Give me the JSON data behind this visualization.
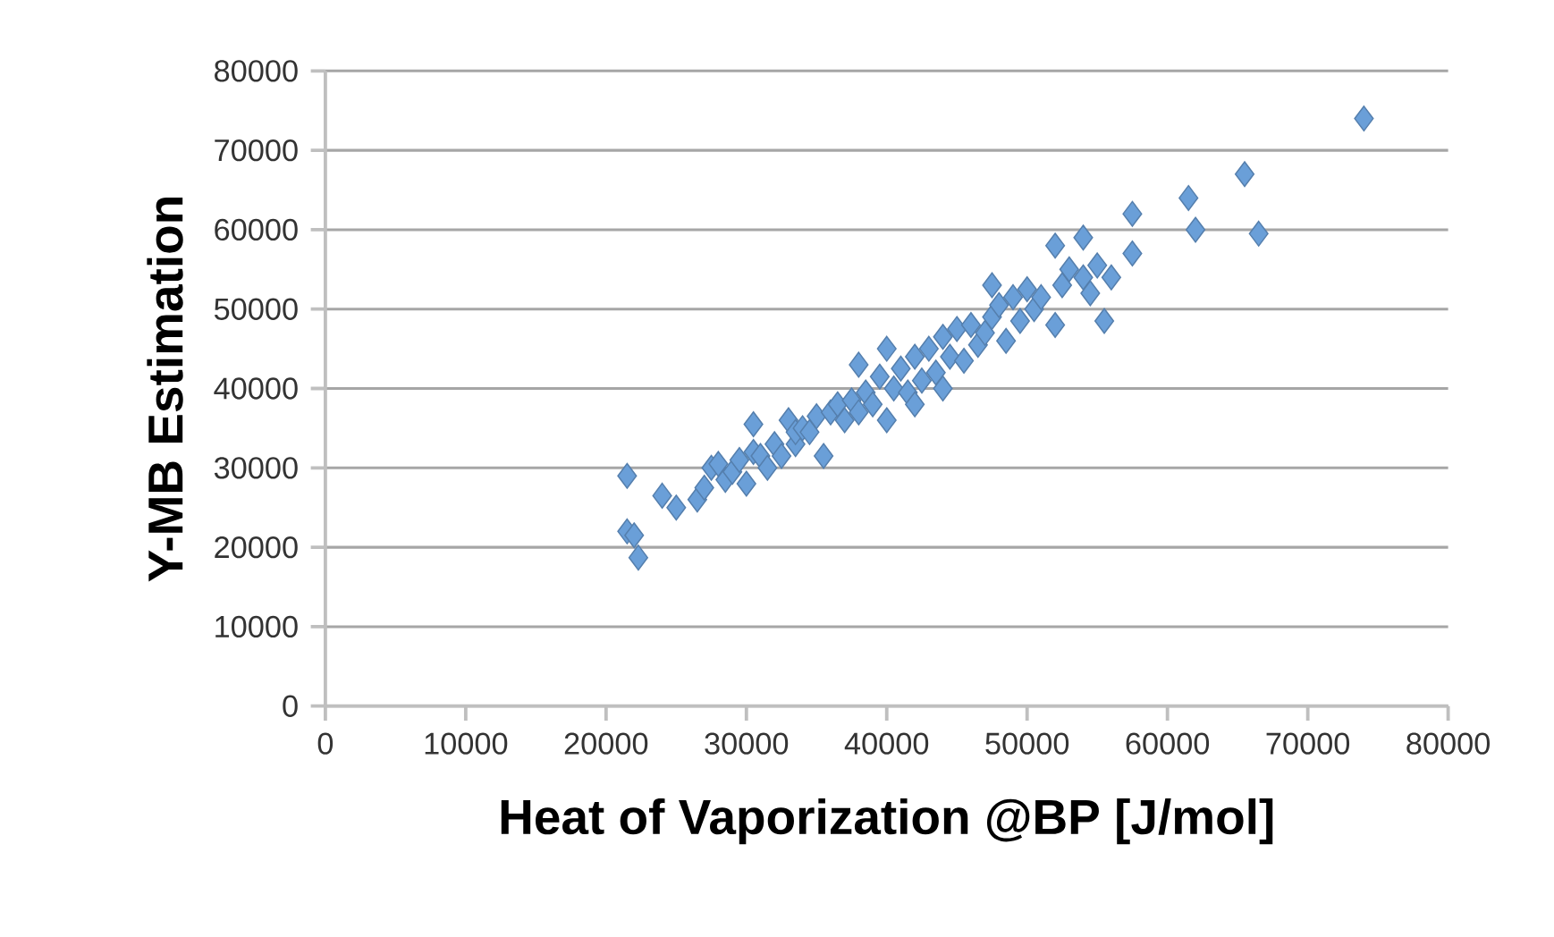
{
  "chart_data": {
    "type": "scatter",
    "xlabel": "Heat of Vaporization @BP [J/mol]",
    "ylabel": "Y-MB Estimation",
    "xlim": [
      0,
      80000
    ],
    "ylim": [
      0,
      80000
    ],
    "xticks": [
      0,
      10000,
      20000,
      30000,
      40000,
      50000,
      60000,
      70000,
      80000
    ],
    "yticks": [
      0,
      10000,
      20000,
      30000,
      40000,
      50000,
      60000,
      70000,
      80000
    ],
    "grid": "y",
    "marker": "diamond",
    "series": [
      {
        "color": "#6a9fd8",
        "x": [
          21500,
          21500,
          22000,
          22300,
          24000,
          25000,
          26500,
          27000,
          27500,
          28000,
          28500,
          29000,
          29500,
          30000,
          30500,
          30500,
          31000,
          31500,
          32000,
          32500,
          33000,
          33500,
          33500,
          34000,
          34500,
          35000,
          35500,
          36000,
          36500,
          37000,
          37500,
          38000,
          38000,
          38500,
          39000,
          39500,
          40000,
          40000,
          40500,
          41000,
          41500,
          42000,
          42000,
          42500,
          43000,
          43500,
          44000,
          44000,
          44500,
          45000,
          45500,
          46000,
          46500,
          47000,
          47500,
          47500,
          48000,
          48500,
          49000,
          49500,
          50000,
          50500,
          51000,
          52000,
          52000,
          52500,
          53000,
          54000,
          54000,
          54500,
          55000,
          55500,
          56000,
          57500,
          57500,
          61500,
          62000,
          65500,
          66500,
          74000
        ],
        "values": [
          29000,
          22000,
          21500,
          18700,
          26500,
          25000,
          26000,
          27500,
          30000,
          30500,
          28500,
          29500,
          31000,
          28000,
          35500,
          32000,
          31500,
          30000,
          33000,
          31500,
          36000,
          33000,
          34500,
          35000,
          34500,
          36500,
          31500,
          37000,
          38000,
          36000,
          38500,
          43000,
          37000,
          39500,
          38000,
          41500,
          45000,
          36000,
          40000,
          42500,
          39500,
          38000,
          44000,
          41000,
          45000,
          42000,
          40000,
          46500,
          44000,
          47500,
          43500,
          48000,
          45500,
          47000,
          53000,
          49000,
          50500,
          46000,
          51500,
          48500,
          52500,
          50000,
          51500,
          48000,
          58000,
          53000,
          55000,
          59000,
          54000,
          52000,
          55500,
          48500,
          54000,
          62000,
          57000,
          64000,
          60000,
          67000,
          59500,
          74000
        ]
      }
    ]
  }
}
